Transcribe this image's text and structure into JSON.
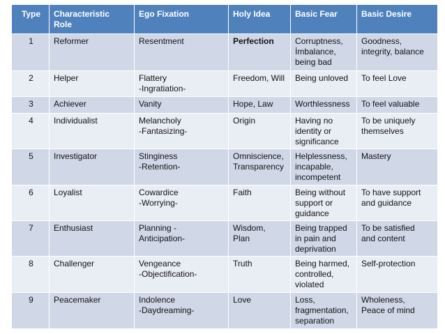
{
  "table": {
    "headers": {
      "type": "Type",
      "role": "Characteristic\nRole",
      "fixation": "Ego Fixation",
      "idea": "Holy Idea",
      "fear": "Basic Fear",
      "desire": "Basic   Desire"
    },
    "rows": [
      {
        "type": "1",
        "role": "Reformer",
        "fixation": "Resentment",
        "idea": "Perfection",
        "fear": "Corruptness,\nİmbalance,\nbeing bad",
        "desire": "Goodness,\nintegrity, balance"
      },
      {
        "type": "2",
        "role": "Helper",
        "fixation": "Flattery\n-Ingratiation-",
        "idea": "Freedom, Will",
        "fear": "Being unloved",
        "desire": "To feel Love"
      },
      {
        "type": "3",
        "role": "Achiever",
        "fixation": "Vanity",
        "idea": "Hope, Law",
        "fear": "Worthlessness",
        "desire": "To feel valuable"
      },
      {
        "type": "4",
        "role": "Individualist",
        "fixation": "Melancholy\n-Fantasizing-",
        "idea": "Origin",
        "fear": "Having no\nidentity or\nsignificance",
        "desire": "To be uniquely\nthemselves"
      },
      {
        "type": "5",
        "role": "Investigator",
        "fixation": "Stinginess\n-Retention-",
        "idea": "Omniscience,\nTransparency",
        "fear": "Helplessness,\nincapable,\nincompetent",
        "desire": "Mastery"
      },
      {
        "type": "6",
        "role": "Loyalist",
        "fixation": "Cowardice\n-Worrying-",
        "idea": "Faith",
        "fear": "Being without\nsupport or\nguidance",
        "desire": "To  have support\nand guidance"
      },
      {
        "type": "7",
        "role": "Enthusiast",
        "fixation": "Planning              -\nAnticipation-",
        "idea": "Wisdom,\nPlan",
        "fear": "Being trapped\nin pain and\ndeprivation",
        "desire": "To be satisfied\nand content"
      },
      {
        "type": "8",
        "role": "Challenger",
        "fixation": "Vengeance\n-Objectification-",
        "idea": "Truth",
        "fear": "Being harmed,\ncontrolled,\nviolated",
        "desire": "Self-protection"
      },
      {
        "type": "9",
        "role": "Peacemaker",
        "fixation": "Indolence\n-Daydreaming-",
        "idea": "Love",
        "fear": "Loss,\nfragmentation,\nseparation",
        "desire": "Wholeness,\nPeace of mind"
      }
    ]
  }
}
